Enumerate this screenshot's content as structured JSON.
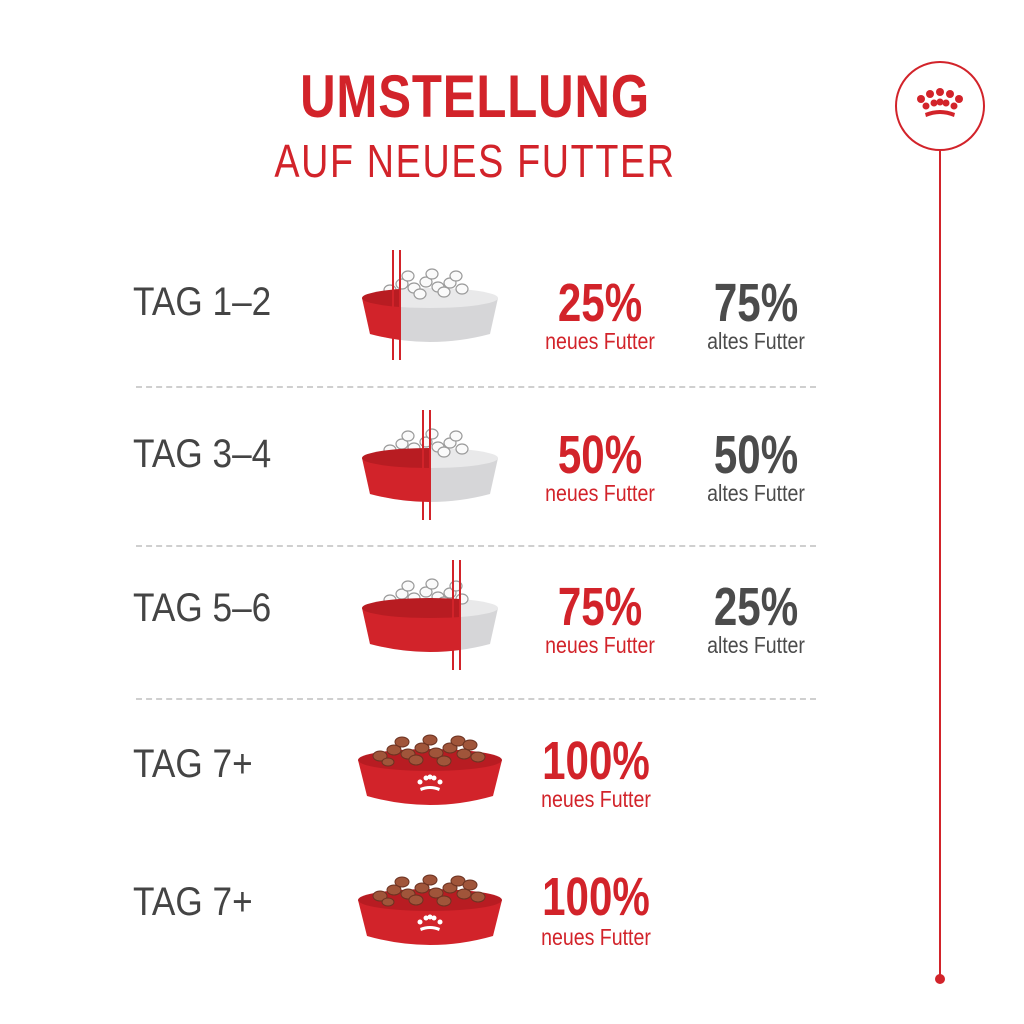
{
  "title": {
    "line1": "UMSTELLUNG",
    "line2": "AUF NEUES FUTTER"
  },
  "brand_color": "#d2232a",
  "logo_icon": "crown-icon",
  "rows": [
    {
      "day": "TAG 1–2",
      "new_pct": "25%",
      "new_label": "neues Futter",
      "old_pct": "75%",
      "old_label": "altes Futter",
      "new_fraction": 0.25
    },
    {
      "day": "TAG 3–4",
      "new_pct": "50%",
      "new_label": "neues Futter",
      "old_pct": "50%",
      "old_label": "altes Futter",
      "new_fraction": 0.5
    },
    {
      "day": "TAG 5–6",
      "new_pct": "75%",
      "new_label": "neues Futter",
      "old_pct": "25%",
      "old_label": "altes Futter",
      "new_fraction": 0.75
    },
    {
      "day": "TAG 7+",
      "new_pct": "100%",
      "new_label": "neues Futter",
      "new_fraction": 1
    },
    {
      "day": "TAG 7+",
      "new_pct": "100%",
      "new_label": "neues Futter",
      "new_fraction": 1
    }
  ]
}
